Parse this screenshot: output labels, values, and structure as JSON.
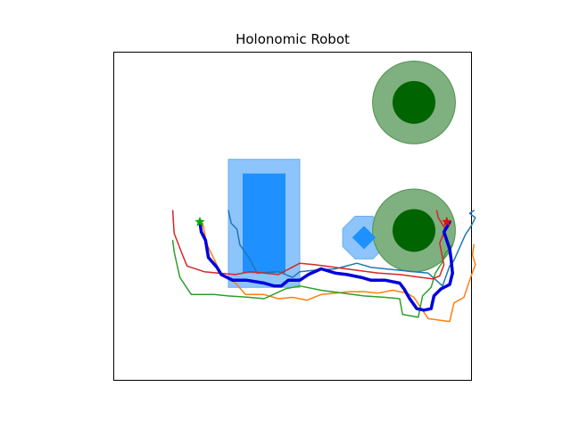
{
  "chart_data": {
    "type": "scatter",
    "title": "Holonomic Robot",
    "xlabel": "",
    "ylabel": "",
    "axes_visible": false,
    "xlim": [
      -1,
      24
    ],
    "ylim": [
      -11,
      12
    ],
    "obstacles": [
      {
        "shape": "rectangle",
        "x": 8,
        "y": -3.5,
        "width": 3,
        "height": 7,
        "color": "#1e90ff",
        "buffer": 1,
        "buffer_color": "#8cc4fb"
      },
      {
        "shape": "rectangle",
        "x": 16,
        "y": -1.5,
        "width": 1,
        "height": 1,
        "color": "#1e90ff",
        "rotation_deg": 45,
        "buffer": 1,
        "buffer_color": "#8cc4fb",
        "buffer_shape": "octagon"
      },
      {
        "shape": "circle",
        "x": 20,
        "y": 8.5,
        "radius": 1.5,
        "color": "#006400",
        "buffer_radius": 2.9,
        "buffer_color": "#7fb07f"
      },
      {
        "shape": "circle",
        "x": 20,
        "y": -0.5,
        "radius": 1.5,
        "color": "#006400",
        "buffer_radius": 2.9,
        "buffer_color": "#7fb07f"
      }
    ],
    "start": {
      "x": 5,
      "y": 0.1,
      "marker": "star",
      "color": "#00aa00"
    },
    "goal": {
      "x": 22.3,
      "y": 0.1,
      "marker": "star",
      "color": "#dd1111"
    },
    "series": [
      {
        "color": "#1f77b4",
        "linewidth": 1.5,
        "x": [
          7,
          7.2,
          7.6,
          7.8,
          8.5,
          9,
          10.5,
          11.5,
          12,
          13,
          14.5,
          16,
          17,
          18,
          19,
          20,
          21,
          22,
          22.5,
          22.8,
          23.2,
          23.6,
          24,
          24.3,
          23.9,
          24.2
        ],
        "y": [
          0.9,
          0,
          -0.4,
          -1.5,
          -2.5,
          -3.5,
          -3.4,
          -3.8,
          -3.4,
          -3.3,
          -3.2,
          -2.8,
          -3.1,
          -3.2,
          -3.3,
          -3.4,
          -3.5,
          -4.4,
          -3,
          -2.6,
          -1.7,
          -0.8,
          -0.2,
          0.4,
          0.7,
          0.9
        ]
      },
      {
        "color": "#ff7f0e",
        "linewidth": 1.5,
        "x": [
          5.2,
          5.5,
          6,
          6.5,
          7.5,
          8.2,
          9.5,
          10.5,
          11.5,
          12.5,
          13.5,
          14.5,
          15.5,
          16.5,
          17.5,
          18.5,
          19.5,
          20,
          21,
          22.5,
          22.8,
          23.5,
          23.9,
          24.3,
          24.1,
          24.2
        ],
        "y": [
          0,
          -1.5,
          -2.5,
          -3.6,
          -4.2,
          -5,
          -5,
          -5.3,
          -5.2,
          -5.4,
          -5,
          -4.9,
          -4.8,
          -4.8,
          -4.9,
          -4.7,
          -4.9,
          -5.2,
          -6.7,
          -6.9,
          -5.6,
          -5.2,
          -4,
          -2.9,
          -2.2,
          -1.5
        ]
      },
      {
        "color": "#2ca02c",
        "linewidth": 1.5,
        "x": [
          3.1,
          3.2,
          3.6,
          4.4,
          6,
          7,
          8.5,
          9.5,
          11,
          12,
          13.5,
          15,
          16.5,
          18,
          19,
          19.2,
          20.3,
          20.6,
          21.2,
          21.5,
          22,
          22.2,
          22.7
        ],
        "y": [
          -1.2,
          -2,
          -3.8,
          -5,
          -5,
          -5.1,
          -5.2,
          -5.3,
          -4.6,
          -4.4,
          -4.7,
          -4.9,
          -5.1,
          -5.2,
          -5.3,
          -6.4,
          -6.6,
          -5.1,
          -4.5,
          -3.5,
          -2.7,
          -2.1,
          -1.5
        ]
      },
      {
        "color": "#d62728",
        "linewidth": 1.5,
        "x": [
          3.1,
          3.2,
          3.7,
          4.1,
          5.3,
          6.3,
          7.5,
          8.5,
          9.5,
          10.5,
          12,
          13,
          14.5,
          16,
          17.5,
          19,
          20.5,
          21.3,
          21.8,
          22.1,
          21.8,
          22.2,
          21.7,
          21.6
        ],
        "y": [
          0.9,
          -0.7,
          -2,
          -3,
          -3.4,
          -3.5,
          -3.6,
          -3.4,
          -3.5,
          -3.6,
          -2.8,
          -2.9,
          -3.1,
          -3.3,
          -3.5,
          -3.6,
          -3.8,
          -3.9,
          -3.7,
          -2.9,
          -1.4,
          -0.4,
          0.4,
          0.9
        ]
      },
      {
        "color": "#0000dd",
        "linewidth": 3.5,
        "x": [
          5,
          5.1,
          5.4,
          5.6,
          6.2,
          6.5,
          7.3,
          8.3,
          9.5,
          10.2,
          10.7,
          11.2,
          12,
          12.6,
          13.5,
          14.5,
          15.3,
          16.3,
          17,
          18,
          19,
          19.3,
          19.7,
          20.2,
          20.7,
          21.2,
          21.4,
          21.9,
          22.5,
          22.7,
          22.6,
          22.5,
          22.1,
          22.4,
          22.5,
          22.3
        ],
        "y": [
          0.1,
          -0.6,
          -1.2,
          -2.4,
          -3.1,
          -3.6,
          -4,
          -4,
          -4.2,
          -4.4,
          -4.4,
          -4,
          -4,
          -3.6,
          -3.2,
          -3.5,
          -3.6,
          -3.8,
          -4,
          -4,
          -4.2,
          -4.6,
          -5.3,
          -6,
          -6.1,
          -6,
          -5.1,
          -4.6,
          -4.3,
          -3.5,
          -2.5,
          -1.8,
          -0.6,
          -0.1,
          0.1,
          0.1
        ]
      }
    ]
  }
}
